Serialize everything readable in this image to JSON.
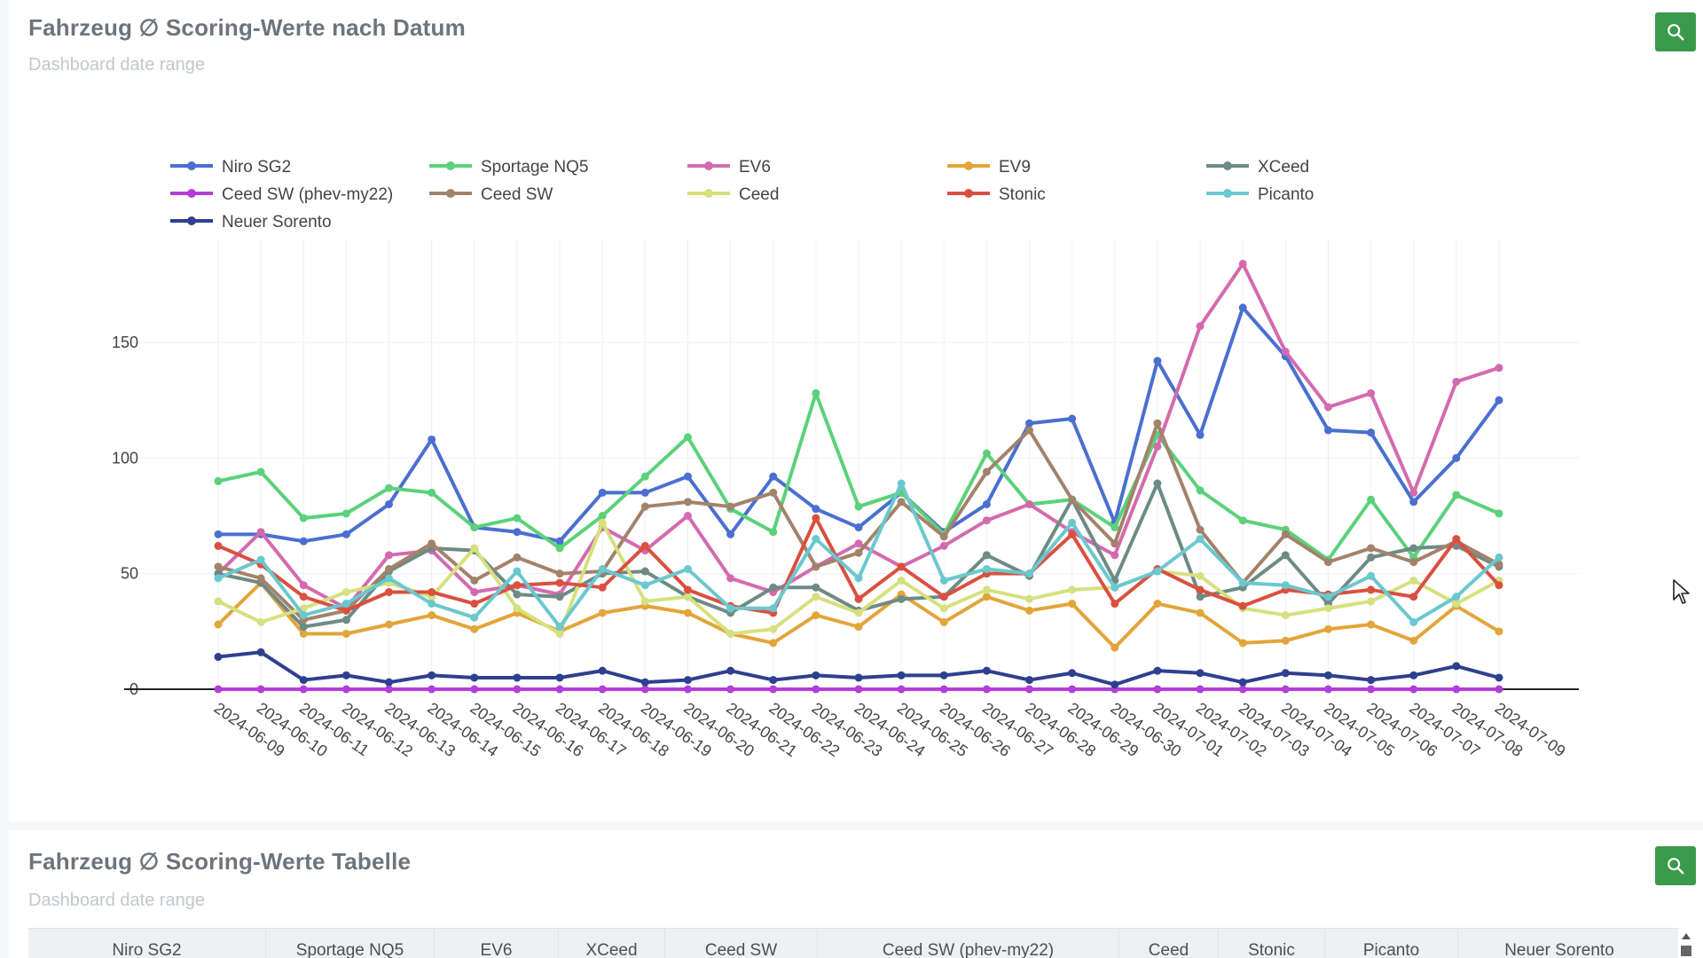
{
  "chart_card": {
    "title": "Fahrzeug ∅ Scoring-Werte nach Datum",
    "subtitle": "Dashboard date range",
    "zoom_icon": "search-icon"
  },
  "table_card": {
    "title": "Fahrzeug ∅ Scoring-Werte Tabelle",
    "subtitle": "Dashboard date range",
    "zoom_icon": "search-icon",
    "columns": [
      "Niro SG2",
      "Sportage NQ5",
      "EV6",
      "XCeed",
      "Ceed SW",
      "Ceed SW (phev-my22)",
      "Ceed",
      "Stonic",
      "Picanto",
      "Neuer Sorento"
    ]
  },
  "chart_data": {
    "type": "line",
    "title": "Fahrzeug ∅ Scoring-Werte nach Datum",
    "xlabel": "",
    "ylabel": "",
    "ylim": [
      0,
      190
    ],
    "yticks": [
      0,
      50,
      100,
      150
    ],
    "legend_position": "top",
    "x": [
      "2024-06-09",
      "2024-06-10",
      "2024-06-11",
      "2024-06-12",
      "2024-06-13",
      "2024-06-14",
      "2024-06-15",
      "2024-06-16",
      "2024-06-17",
      "2024-06-18",
      "2024-06-19",
      "2024-06-20",
      "2024-06-21",
      "2024-06-22",
      "2024-06-23",
      "2024-06-24",
      "2024-06-25",
      "2024-06-26",
      "2024-06-27",
      "2024-06-28",
      "2024-06-29",
      "2024-06-30",
      "2024-07-01",
      "2024-07-02",
      "2024-07-03",
      "2024-07-04",
      "2024-07-05",
      "2024-07-06",
      "2024-07-07",
      "2024-07-08",
      "2024-07-09"
    ],
    "series": [
      {
        "name": "Niro SG2",
        "color": "#4a6fd0",
        "values": [
          67,
          67,
          64,
          67,
          80,
          108,
          70,
          68,
          64,
          85,
          85,
          92,
          67,
          92,
          78,
          70,
          85,
          68,
          80,
          115,
          117,
          72,
          142,
          110,
          165,
          144,
          112,
          111,
          81,
          100,
          125
        ]
      },
      {
        "name": "Sportage NQ5",
        "color": "#5bd17a",
        "values": [
          90,
          94,
          74,
          76,
          87,
          85,
          70,
          74,
          61,
          75,
          92,
          109,
          78,
          68,
          128,
          79,
          85,
          67,
          102,
          80,
          82,
          70,
          110,
          86,
          73,
          69,
          56,
          82,
          57,
          84,
          76
        ]
      },
      {
        "name": "EV6",
        "color": "#d46aae",
        "values": [
          50,
          68,
          45,
          35,
          58,
          60,
          42,
          45,
          41,
          70,
          60,
          75,
          48,
          42,
          53,
          63,
          53,
          62,
          73,
          80,
          68,
          58,
          105,
          157,
          184,
          146,
          122,
          128,
          85,
          133,
          139
        ]
      },
      {
        "name": "EV9",
        "color": "#e2a53a",
        "values": [
          28,
          46,
          24,
          24,
          28,
          32,
          26,
          33,
          25,
          33,
          36,
          33,
          24,
          20,
          32,
          27,
          41,
          29,
          40,
          34,
          37,
          18,
          37,
          33,
          20,
          21,
          26,
          28,
          21,
          36,
          25
        ]
      },
      {
        "name": "XCeed",
        "color": "#6e8a84",
        "values": [
          50,
          46,
          27,
          30,
          51,
          61,
          60,
          41,
          40,
          50,
          51,
          40,
          33,
          44,
          44,
          34,
          39,
          40,
          58,
          49,
          82,
          47,
          89,
          40,
          44,
          58,
          37,
          57,
          61,
          62,
          53
        ]
      },
      {
        "name": "Ceed SW (phev-my22)",
        "color": "#b23ed6",
        "values": [
          0,
          0,
          0,
          0,
          0,
          0,
          0,
          0,
          0,
          0,
          0,
          0,
          0,
          0,
          0,
          0,
          0,
          0,
          0,
          0,
          0,
          0,
          0,
          0,
          0,
          0,
          0,
          0,
          0,
          0,
          0
        ]
      },
      {
        "name": "Ceed SW",
        "color": "#a3826b",
        "values": [
          53,
          48,
          30,
          34,
          52,
          63,
          47,
          57,
          50,
          51,
          79,
          81,
          79,
          85,
          53,
          59,
          81,
          66,
          94,
          112,
          82,
          63,
          115,
          69,
          46,
          67,
          55,
          61,
          55,
          64,
          54
        ]
      },
      {
        "name": "Ceed",
        "color": "#d6e07e",
        "values": [
          38,
          29,
          35,
          42,
          46,
          40,
          61,
          35,
          24,
          72,
          38,
          40,
          24,
          26,
          40,
          33,
          47,
          35,
          43,
          39,
          43,
          44,
          51,
          49,
          35,
          32,
          35,
          38,
          47,
          37,
          47
        ]
      },
      {
        "name": "Stonic",
        "color": "#d9503f",
        "values": [
          62,
          54,
          40,
          34,
          42,
          42,
          37,
          45,
          46,
          44,
          62,
          43,
          36,
          33,
          74,
          39,
          53,
          40,
          50,
          50,
          67,
          37,
          52,
          43,
          36,
          43,
          41,
          43,
          40,
          65,
          45
        ]
      },
      {
        "name": "Picanto",
        "color": "#6ac8cf",
        "values": [
          48,
          56,
          32,
          37,
          48,
          37,
          31,
          51,
          27,
          52,
          45,
          52,
          35,
          35,
          65,
          48,
          89,
          47,
          52,
          50,
          72,
          44,
          51,
          65,
          46,
          45,
          40,
          49,
          29,
          40,
          57
        ]
      },
      {
        "name": "Neuer Sorento",
        "color": "#2f3f8f",
        "values": [
          14,
          16,
          4,
          6,
          3,
          6,
          5,
          5,
          5,
          8,
          3,
          4,
          8,
          4,
          6,
          5,
          6,
          6,
          8,
          4,
          7,
          2,
          8,
          7,
          3,
          7,
          6,
          4,
          6,
          10,
          5
        ]
      }
    ]
  }
}
